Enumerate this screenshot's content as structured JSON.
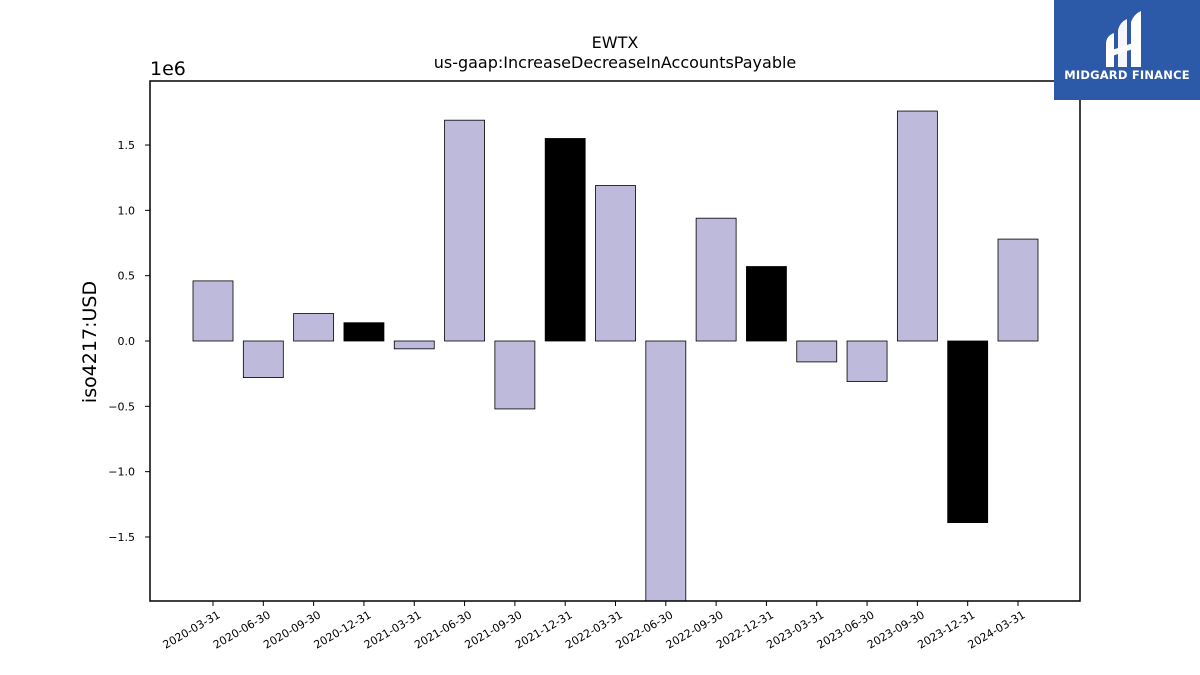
{
  "logo": {
    "text": "MIDGARD FINANCE"
  },
  "chart_data": {
    "type": "bar",
    "title": "EWTX",
    "subtitle": "us-gaap:IncreaseDecreaseInAccountsPayable",
    "ylabel": "iso4217:USD",
    "xlabel": "",
    "offset_label": "1e6",
    "ylim": [
      -1.99,
      1.99
    ],
    "yticks": [
      -1.5,
      -1.0,
      -0.5,
      0.0,
      0.5,
      1.0,
      1.5
    ],
    "ytick_labels": [
      "−1.5",
      "−1.0",
      "−0.5",
      "0.0",
      "0.5",
      "1.0",
      "1.5"
    ],
    "categories": [
      "2020-03-31",
      "2020-06-30",
      "2020-09-30",
      "2020-12-31",
      "2021-03-31",
      "2021-06-30",
      "2021-09-30",
      "2021-12-31",
      "2022-03-31",
      "2022-06-30",
      "2022-09-30",
      "2022-12-31",
      "2023-03-31",
      "2023-06-30",
      "2023-09-30",
      "2023-12-31",
      "2024-03-31"
    ],
    "values": [
      0.46,
      -0.28,
      0.21,
      0.14,
      -0.06,
      1.69,
      -0.52,
      1.55,
      1.19,
      -1.99,
      0.94,
      0.57,
      -0.16,
      -0.31,
      1.76,
      -1.39,
      0.78
    ],
    "highlight": [
      false,
      false,
      false,
      true,
      false,
      false,
      false,
      true,
      false,
      false,
      false,
      true,
      false,
      false,
      false,
      true,
      false
    ],
    "colors": {
      "bar": "#bebadb",
      "highlight": "#000000",
      "edge": "#000000"
    },
    "grid": false
  }
}
